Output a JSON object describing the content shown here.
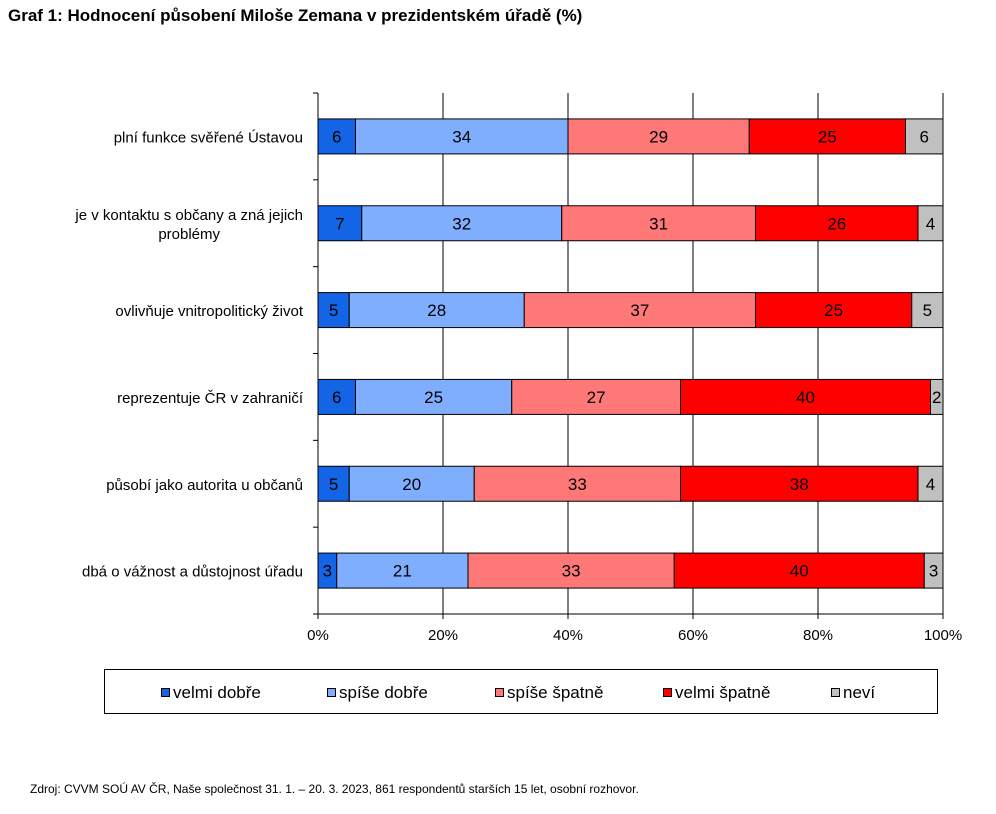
{
  "title": "Graf 1: Hodnocení působení Miloše Zemana v prezidentském úřadě (%)",
  "source_note": "Zdroj: CVVM SOÚ AV ČR, Naše společnost 31. 1. – 20. 3. 2023, 861 respondentů starších 15 let, osobní rozhovor.",
  "chart_data": {
    "type": "bar",
    "orientation": "horizontal",
    "stacked": "percent",
    "title": "Graf 1: Hodnocení působení Miloše Zemana v prezidentském úřadě (%)",
    "categories": [
      [
        "plní funkce svěřené Ústavou"
      ],
      [
        "je v kontaktu s občany a zná jejich",
        "problémy"
      ],
      [
        "ovlivňuje vnitropolitický život"
      ],
      [
        "reprezentuje ČR v zahraničí"
      ],
      [
        "působí jako autorita u občanů"
      ],
      [
        "dbá o vážnost a důstojnost úřadu"
      ]
    ],
    "series": [
      {
        "name": "velmi dobře",
        "color": "#1464E6",
        "values": [
          6,
          7,
          5,
          6,
          5,
          3
        ]
      },
      {
        "name": "spíše dobře",
        "color": "#80AEFF",
        "values": [
          34,
          32,
          28,
          25,
          20,
          21
        ]
      },
      {
        "name": "spíše špatně",
        "color": "#FF7878",
        "values": [
          29,
          31,
          37,
          27,
          33,
          33
        ]
      },
      {
        "name": "velmi špatně",
        "color": "#FF0000",
        "values": [
          25,
          26,
          25,
          40,
          38,
          40
        ]
      },
      {
        "name": "neví",
        "color": "#C0C0C0",
        "values": [
          6,
          4,
          5,
          2,
          4,
          3
        ]
      }
    ],
    "xlim": [
      0,
      100
    ],
    "xticks": [
      "0%",
      "20%",
      "40%",
      "60%",
      "80%",
      "100%"
    ],
    "grid": true,
    "legend_position": "bottom"
  }
}
